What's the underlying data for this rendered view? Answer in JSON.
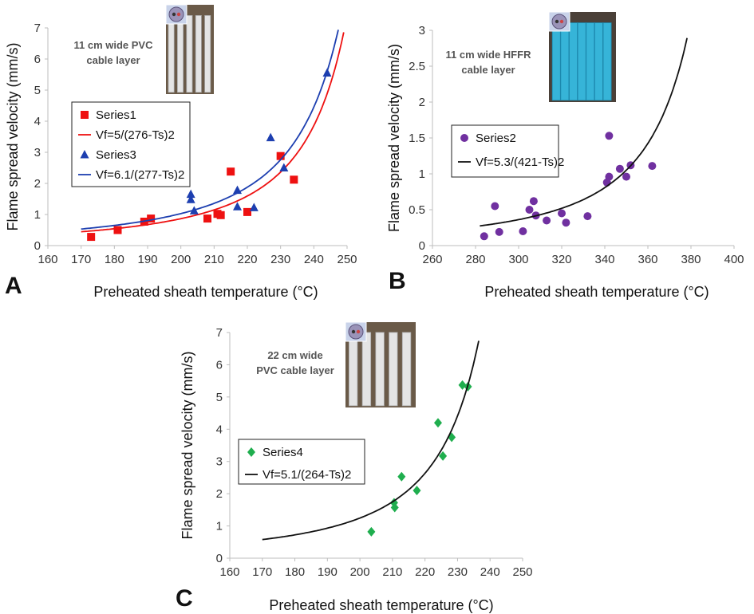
{
  "chart_data": [
    {
      "type": "scatter",
      "panel_label": "A",
      "annotation": [
        "11 cm wide PVC",
        "cable layer"
      ],
      "photo": "pvc-cable-photo",
      "xlabel": "Preheated sheath temperature (°C)",
      "ylabel": "Flame spread velocity (mm/s)",
      "xlim": [
        160,
        250
      ],
      "ylim": [
        0,
        7
      ],
      "xticks": [
        160,
        170,
        180,
        190,
        200,
        210,
        220,
        230,
        240,
        250
      ],
      "yticks": [
        0,
        1,
        2,
        3,
        4,
        5,
        6,
        7
      ],
      "legend_position": "upper-left",
      "series": [
        {
          "name": "Series1",
          "marker": "square",
          "color": "#ee1111",
          "points": [
            [
              173,
              0.28
            ],
            [
              181,
              0.5
            ],
            [
              189,
              0.77
            ],
            [
              191,
              0.87
            ],
            [
              208,
              0.87
            ],
            [
              211,
              1.02
            ],
            [
              212,
              0.98
            ],
            [
              215,
              2.38
            ],
            [
              220,
              1.08
            ],
            [
              230,
              2.88
            ],
            [
              234,
              2.12
            ]
          ]
        },
        {
          "name": "Vf=5/(276-Ts)2",
          "type": "line",
          "color": "#ee1111",
          "fit": {
            "a": 5000,
            "ts0": 276
          },
          "x_range": [
            170,
            249
          ]
        },
        {
          "name": "Series3",
          "marker": "triangle",
          "color": "#1d3fb0",
          "points": [
            [
              203,
              1.48
            ],
            [
              203,
              1.65
            ],
            [
              204,
              1.12
            ],
            [
              217,
              1.78
            ],
            [
              217,
              1.25
            ],
            [
              222,
              1.22
            ],
            [
              227,
              3.47
            ],
            [
              231,
              2.5
            ],
            [
              244,
              5.55
            ]
          ]
        },
        {
          "name": "Vf=6.1/(277-Ts)2",
          "type": "line",
          "color": "#1d3fb0",
          "fit": {
            "a": 6100,
            "ts0": 277
          },
          "x_range": [
            170,
            248
          ]
        }
      ]
    },
    {
      "type": "scatter",
      "panel_label": "B",
      "annotation": [
        "11 cm wide HFFR",
        "cable layer"
      ],
      "photo": "hffr-cable-photo",
      "xlabel": "Preheated sheath temperature (°C)",
      "ylabel": "Flame spread velocity (mm/s)",
      "xlim": [
        260,
        400
      ],
      "ylim": [
        0,
        3
      ],
      "xticks": [
        260,
        280,
        300,
        320,
        340,
        360,
        380,
        400
      ],
      "yticks": [
        0,
        0.5,
        1,
        1.5,
        2,
        2.5,
        3
      ],
      "legend_position": "middle-left",
      "series": [
        {
          "name": "Series2",
          "marker": "circle",
          "color": "#7030a0",
          "points": [
            [
              284,
              0.13
            ],
            [
              289,
              0.55
            ],
            [
              291,
              0.19
            ],
            [
              302,
              0.2
            ],
            [
              305,
              0.5
            ],
            [
              307,
              0.62
            ],
            [
              308,
              0.42
            ],
            [
              313,
              0.35
            ],
            [
              320,
              0.45
            ],
            [
              322,
              0.32
            ],
            [
              332,
              0.41
            ],
            [
              341,
              0.88
            ],
            [
              342,
              0.96
            ],
            [
              342,
              1.53
            ],
            [
              347,
              1.07
            ],
            [
              350,
              0.96
            ],
            [
              352,
              1.12
            ],
            [
              362,
              1.11
            ]
          ]
        },
        {
          "name": "Vf=5.3/(421-Ts)2",
          "type": "line",
          "color": "#111111",
          "fit": {
            "a": 5300,
            "ts0": 421
          },
          "x_range": [
            282,
            379
          ]
        }
      ]
    },
    {
      "type": "scatter",
      "panel_label": "C",
      "annotation": [
        "22 cm wide",
        "PVC cable layer"
      ],
      "photo": "pvc-wide-cable-photo",
      "xlabel": "Preheated sheath temperature (°C)",
      "ylabel": "Flame spread velocity (mm/s)",
      "xlim": [
        160,
        250
      ],
      "ylim": [
        0,
        7
      ],
      "xticks": [
        160,
        170,
        180,
        190,
        200,
        210,
        220,
        230,
        240,
        250
      ],
      "yticks": [
        0,
        1,
        2,
        3,
        4,
        5,
        6,
        7
      ],
      "legend_position": "middle-left",
      "series": [
        {
          "name": "Series4",
          "marker": "diamond",
          "color": "#1fae4e",
          "points": [
            [
              203.5,
              0.82
            ],
            [
              210.5,
              1.72
            ],
            [
              210.7,
              1.57
            ],
            [
              212.8,
              2.53
            ],
            [
              217.5,
              2.1
            ],
            [
              224,
              4.2
            ],
            [
              225.5,
              3.17
            ],
            [
              228.2,
              3.75
            ],
            [
              231.5,
              5.37
            ],
            [
              233.2,
              5.32
            ]
          ]
        },
        {
          "name": "Vf=5.1/(264-Ts)2",
          "type": "line",
          "color": "#111111",
          "fit": {
            "a": 5100,
            "ts0": 264
          },
          "x_range": [
            170,
            236.5
          ]
        }
      ]
    }
  ]
}
